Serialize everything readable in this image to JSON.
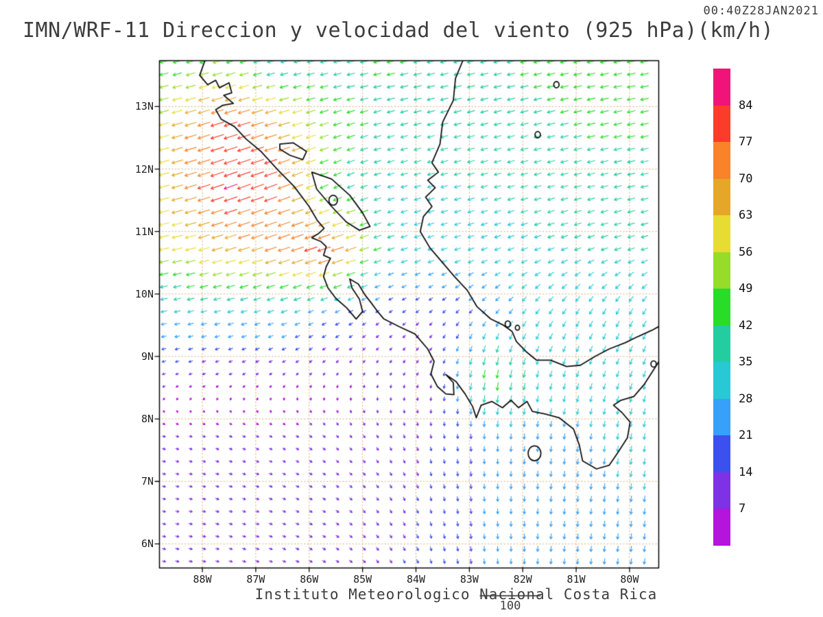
{
  "header": {
    "timestamp": "00:40Z28JAN2021",
    "title": "IMN/WRF-11 Direccion y velocidad del viento (925 hPa)(km/h)"
  },
  "footer": {
    "credit": "Instituto Meteorologico Nacional Costa Rica",
    "vector_key_label": "100"
  },
  "chart_data": {
    "type": "vector_field",
    "title": "IMN/WRF-11 Direccion y velocidad del viento (925 hPa)(km/h)",
    "valid_time": "00:40Z28JAN2021",
    "variable": "wind direction and speed",
    "level_hpa": 925,
    "units": "km/h",
    "map_extent": {
      "lon_min": -88.81,
      "lon_max": -79.46,
      "lat_min": 5.62,
      "lat_max": 13.74
    },
    "x_axis": {
      "tick_labels": [
        "88W",
        "87W",
        "86W",
        "85W",
        "84W",
        "83W",
        "82W",
        "81W",
        "80W"
      ],
      "tick_values": [
        -88,
        -87,
        -86,
        -85,
        -84,
        -83,
        -82,
        -81,
        -80
      ]
    },
    "y_axis": {
      "tick_labels": [
        "13N",
        "12N",
        "11N",
        "10N",
        "9N",
        "8N",
        "7N",
        "6N"
      ],
      "tick_values": [
        13,
        12,
        11,
        10,
        9,
        8,
        7,
        6
      ]
    },
    "grid_dotted": true,
    "colorbar": {
      "edges": [
        7,
        14,
        21,
        28,
        35,
        42,
        49,
        56,
        63,
        70,
        77,
        84
      ],
      "colors_ascending": [
        "#b414dc",
        "#7d32e6",
        "#3c50f0",
        "#37a0fa",
        "#28c8d7",
        "#23cda0",
        "#28dc28",
        "#96dc28",
        "#e6dc32",
        "#e6a728",
        "#fa8228",
        "#fa3c28",
        "#f01478"
      ],
      "position": "right"
    },
    "reference_vector": {
      "value": 100,
      "label": "100"
    },
    "wind_grid": {
      "comment": "coarse u,v (km/h) grid read off the plot; rows = lats ascending, cols = lons ascending; arrows rendered by bilinear interpolation",
      "lats": [
        5.7,
        6.7,
        7.7,
        8.7,
        9.7,
        10.7,
        11.7,
        12.7,
        13.7
      ],
      "lons": [
        -88.8,
        -87.6,
        -86.6,
        -85.6,
        -84.6,
        -83.6,
        -82.6,
        -81.6,
        -80.5,
        -79.4
      ],
      "u": [
        [
          12,
          12,
          11,
          10,
          8,
          5,
          2,
          -2,
          -3,
          -4
        ],
        [
          11,
          11,
          10,
          9,
          7,
          4,
          1,
          -2,
          -3,
          -4
        ],
        [
          9,
          9,
          8,
          7,
          5,
          3,
          0,
          -3,
          -4,
          -5
        ],
        [
          -10,
          -8,
          -6,
          -4,
          -3,
          -4,
          -8,
          -8,
          -10,
          -10
        ],
        [
          -28,
          -30,
          -30,
          -20,
          -12,
          -10,
          -15,
          -18,
          -15,
          -18
        ],
        [
          -55,
          -62,
          -68,
          -78,
          -35,
          -30,
          -30,
          -32,
          -34,
          -34
        ],
        [
          -58,
          -80,
          -75,
          -40,
          -32,
          -33,
          -34,
          -36,
          -38,
          -38
        ],
        [
          -55,
          -80,
          -68,
          -45,
          -38,
          -38,
          -38,
          -40,
          -42,
          -42
        ],
        [
          -42,
          -48,
          -32,
          -38,
          -42,
          -40,
          -40,
          -42,
          -44,
          -42
        ]
      ],
      "v": [
        [
          -2,
          -3,
          -4,
          -6,
          -10,
          -16,
          -22,
          -24,
          -26,
          -28
        ],
        [
          -2,
          -3,
          -4,
          -6,
          -10,
          -15,
          -22,
          -25,
          -27,
          -28
        ],
        [
          -2,
          -3,
          -4,
          -6,
          -9,
          -14,
          -24,
          -26,
          -28,
          -30
        ],
        [
          -3,
          -4,
          -5,
          -6,
          -7,
          -10,
          -48,
          -30,
          -28,
          -30
        ],
        [
          -6,
          -8,
          -10,
          -10,
          -8,
          -10,
          -18,
          -25,
          -28,
          -30
        ],
        [
          -12,
          -18,
          -22,
          -25,
          -12,
          -10,
          -12,
          -12,
          -12,
          -10
        ],
        [
          -15,
          -28,
          -28,
          -18,
          -10,
          -10,
          -10,
          -10,
          -10,
          -8
        ],
        [
          -15,
          -25,
          -20,
          -15,
          -10,
          -10,
          -10,
          -10,
          -10,
          -8
        ],
        [
          -10,
          -15,
          -8,
          -8,
          -10,
          -10,
          -10,
          -10,
          -10,
          -8
        ]
      ],
      "arrow_spacing_deg": {
        "lon": 0.25,
        "lat": 0.2
      }
    },
    "coastlines": {
      "pacific": [
        [
          -87.95,
          13.74
        ],
        [
          -88.05,
          13.5
        ],
        [
          -87.9,
          13.35
        ],
        [
          -87.75,
          13.42
        ],
        [
          -87.68,
          13.3
        ],
        [
          -87.5,
          13.38
        ],
        [
          -87.45,
          13.22
        ],
        [
          -87.6,
          13.18
        ],
        [
          -87.42,
          13.05
        ],
        [
          -87.62,
          13.02
        ],
        [
          -87.75,
          12.95
        ],
        [
          -87.65,
          12.8
        ],
        [
          -87.4,
          12.68
        ],
        [
          -87.18,
          12.48
        ],
        [
          -86.9,
          12.28
        ],
        [
          -86.58,
          11.98
        ],
        [
          -86.28,
          11.72
        ],
        [
          -86.0,
          11.4
        ],
        [
          -85.85,
          11.18
        ],
        [
          -85.72,
          11.05
        ],
        [
          -85.82,
          10.97
        ],
        [
          -85.95,
          10.9
        ],
        [
          -85.78,
          10.84
        ],
        [
          -85.68,
          10.76
        ],
        [
          -85.73,
          10.62
        ],
        [
          -85.6,
          10.57
        ],
        [
          -85.68,
          10.44
        ],
        [
          -85.73,
          10.28
        ],
        [
          -85.65,
          10.1
        ],
        [
          -85.5,
          9.93
        ],
        [
          -85.3,
          9.78
        ],
        [
          -85.12,
          9.6
        ],
        [
          -85.0,
          9.72
        ],
        [
          -85.06,
          9.92
        ],
        [
          -85.2,
          10.1
        ],
        [
          -85.24,
          10.24
        ],
        [
          -85.08,
          10.16
        ],
        [
          -84.95,
          9.98
        ],
        [
          -84.84,
          9.86
        ],
        [
          -84.7,
          9.7
        ],
        [
          -84.6,
          9.6
        ],
        [
          -84.32,
          9.48
        ],
        [
          -84.02,
          9.36
        ],
        [
          -83.78,
          9.12
        ],
        [
          -83.66,
          8.92
        ],
        [
          -83.72,
          8.72
        ],
        [
          -83.6,
          8.52
        ],
        [
          -83.44,
          8.4
        ],
        [
          -83.29,
          8.39
        ],
        [
          -83.3,
          8.58
        ],
        [
          -83.44,
          8.71
        ],
        [
          -83.25,
          8.6
        ],
        [
          -83.08,
          8.4
        ],
        [
          -82.94,
          8.2
        ],
        [
          -82.87,
          8.02
        ],
        [
          -82.78,
          8.22
        ],
        [
          -82.58,
          8.28
        ],
        [
          -82.38,
          8.18
        ],
        [
          -82.22,
          8.3
        ],
        [
          -82.08,
          8.18
        ],
        [
          -81.92,
          8.28
        ],
        [
          -81.82,
          8.12
        ],
        [
          -81.58,
          8.08
        ],
        [
          -81.32,
          8.02
        ],
        [
          -81.05,
          7.84
        ],
        [
          -80.94,
          7.58
        ],
        [
          -80.88,
          7.33
        ],
        [
          -80.62,
          7.2
        ],
        [
          -80.38,
          7.26
        ],
        [
          -80.22,
          7.46
        ],
        [
          -80.04,
          7.7
        ],
        [
          -79.99,
          7.95
        ],
        [
          -80.14,
          8.1
        ],
        [
          -80.3,
          8.22
        ],
        [
          -80.16,
          8.3
        ],
        [
          -79.92,
          8.36
        ],
        [
          -79.72,
          8.56
        ],
        [
          -79.54,
          8.8
        ],
        [
          -79.45,
          8.92
        ]
      ],
      "caribbean": [
        [
          -83.12,
          13.74
        ],
        [
          -83.26,
          13.45
        ],
        [
          -83.3,
          13.1
        ],
        [
          -83.5,
          12.75
        ],
        [
          -83.55,
          12.4
        ],
        [
          -83.7,
          12.1
        ],
        [
          -83.58,
          11.95
        ],
        [
          -83.78,
          11.82
        ],
        [
          -83.64,
          11.7
        ],
        [
          -83.82,
          11.55
        ],
        [
          -83.7,
          11.4
        ],
        [
          -83.86,
          11.24
        ],
        [
          -83.92,
          11.0
        ],
        [
          -83.74,
          10.74
        ],
        [
          -83.54,
          10.54
        ],
        [
          -83.28,
          10.28
        ],
        [
          -83.04,
          10.06
        ],
        [
          -82.86,
          9.8
        ],
        [
          -82.6,
          9.6
        ],
        [
          -82.36,
          9.5
        ],
        [
          -82.2,
          9.4
        ],
        [
          -82.12,
          9.24
        ],
        [
          -81.94,
          9.08
        ],
        [
          -81.74,
          8.94
        ],
        [
          -81.48,
          8.94
        ],
        [
          -81.18,
          8.84
        ],
        [
          -80.92,
          8.86
        ],
        [
          -80.65,
          9.0
        ],
        [
          -80.38,
          9.12
        ],
        [
          -80.08,
          9.22
        ],
        [
          -79.84,
          9.32
        ],
        [
          -79.58,
          9.42
        ],
        [
          -79.45,
          9.48
        ]
      ],
      "lakes": [
        [
          [
            -85.95,
            11.95
          ],
          [
            -85.58,
            11.84
          ],
          [
            -85.24,
            11.58
          ],
          [
            -85.0,
            11.3
          ],
          [
            -84.86,
            11.08
          ],
          [
            -85.06,
            11.02
          ],
          [
            -85.3,
            11.15
          ],
          [
            -85.58,
            11.4
          ],
          [
            -85.86,
            11.68
          ],
          [
            -85.95,
            11.95
          ]
        ],
        [
          [
            -86.55,
            12.4
          ],
          [
            -86.3,
            12.42
          ],
          [
            -86.05,
            12.28
          ],
          [
            -86.12,
            12.15
          ],
          [
            -86.36,
            12.22
          ],
          [
            -86.55,
            12.32
          ],
          [
            -86.55,
            12.4
          ]
        ]
      ],
      "islands": [
        {
          "c": [
            -85.55,
            11.5
          ],
          "r": 0.08
        },
        {
          "c": [
            -81.37,
            13.35
          ],
          "r": 0.05
        },
        {
          "c": [
            -81.72,
            12.55
          ],
          "r": 0.05
        },
        {
          "c": [
            -82.28,
            9.52
          ],
          "r": 0.05
        },
        {
          "c": [
            -82.1,
            9.46
          ],
          "r": 0.04
        },
        {
          "c": [
            -81.78,
            7.45
          ],
          "r": 0.12
        },
        {
          "c": [
            -79.55,
            8.88
          ],
          "r": 0.05
        }
      ]
    }
  }
}
